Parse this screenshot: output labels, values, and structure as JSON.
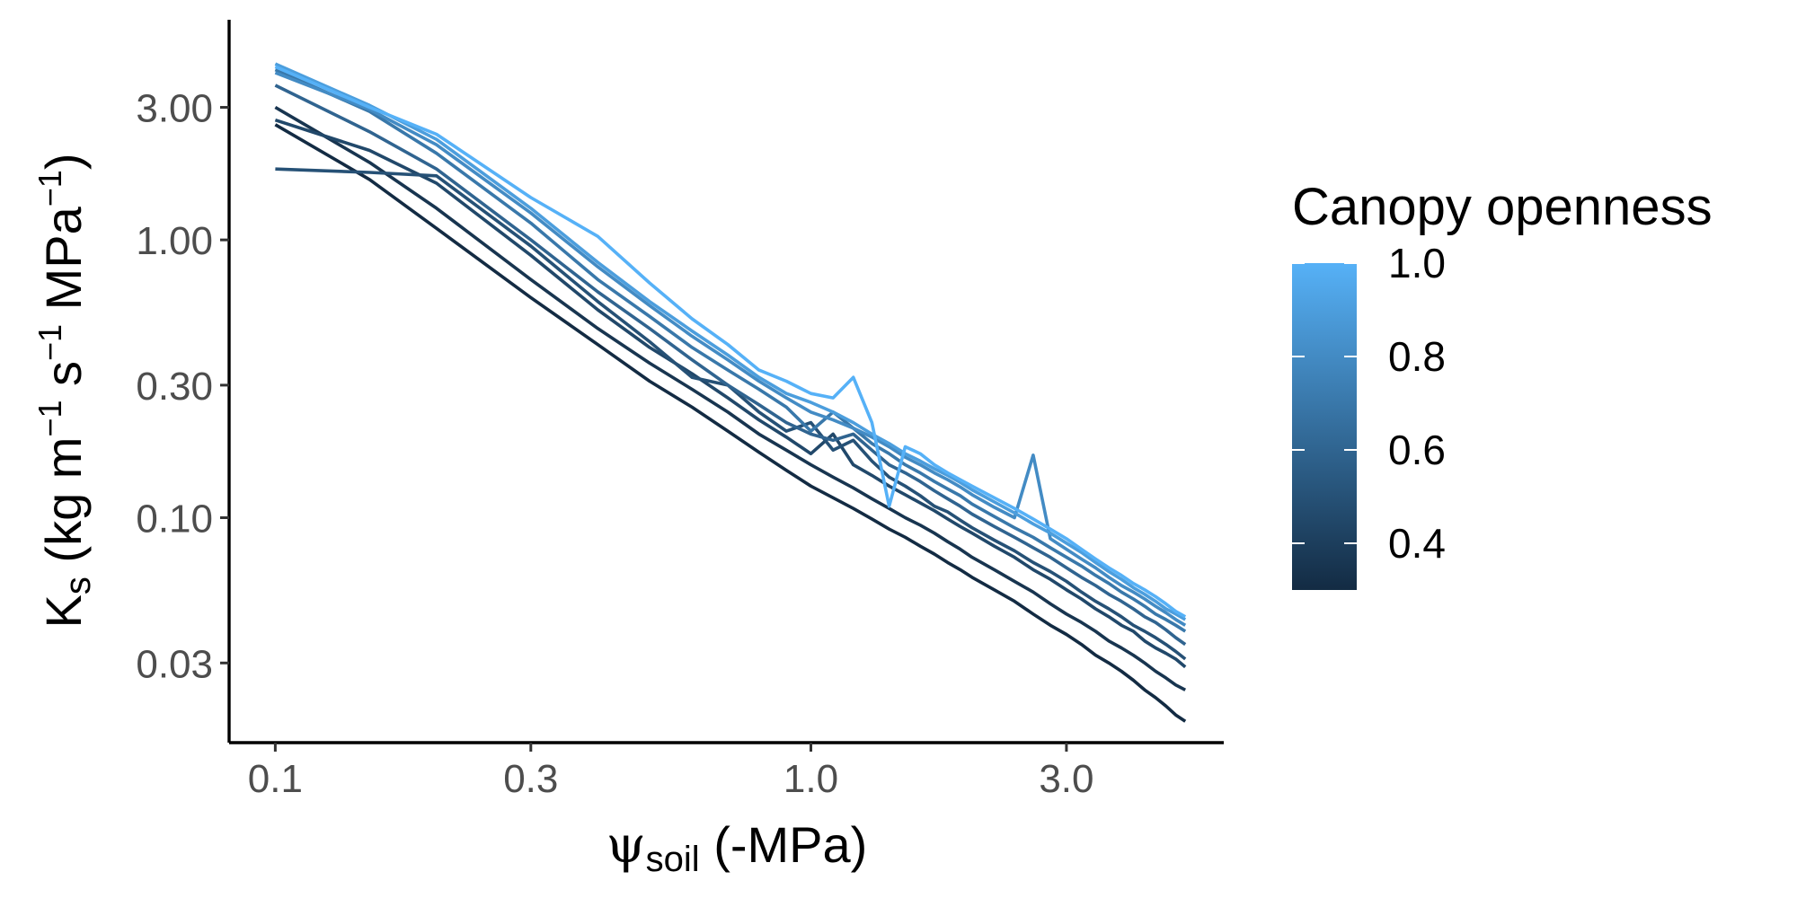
{
  "chart_data": {
    "type": "line",
    "xlabel": {
      "main": "ψ",
      "sub": "soil",
      "rest": " (-MPa)"
    },
    "ylabel": {
      "k": "K",
      "ksub": "s",
      "open": " (kg m",
      "sup1": "−1",
      "mid": " s",
      "sup2": "−1",
      "mpa": " MPa",
      "sup3": "−1",
      "close": ")"
    },
    "x_scale": "log",
    "y_scale": "log",
    "xlim": [
      0.082,
      5.9
    ],
    "ylim": [
      0.0155,
      6.2
    ],
    "x_ticks": [
      0.1,
      0.3,
      1.0,
      3.0
    ],
    "x_tick_labels": [
      "0.1",
      "0.3",
      "1.0",
      "3.0"
    ],
    "y_ticks": [
      0.03,
      0.1,
      0.3,
      1.0,
      3.0
    ],
    "y_tick_labels": [
      "0.03",
      "0.10",
      "0.30",
      "1.00",
      "3.00"
    ],
    "grid": false,
    "legend": {
      "title": "Canopy openness",
      "type": "colorbar",
      "placement": "right",
      "range": [
        0.3,
        1.0
      ],
      "ticks": [
        0.4,
        0.6,
        0.8,
        1.0
      ],
      "tick_labels": [
        "0.4",
        "0.6",
        "0.8",
        "1.0"
      ],
      "low_color": "#132B43",
      "high_color": "#56B1F7"
    },
    "x": [
      0.1,
      0.15,
      0.2,
      0.3,
      0.4,
      0.5,
      0.6,
      0.7,
      0.8,
      0.9,
      1.0,
      1.1,
      1.2,
      1.3,
      1.4,
      1.5,
      1.6,
      1.7,
      1.8,
      1.9,
      2.0,
      2.2,
      2.4,
      2.6,
      2.8,
      3.0,
      3.2,
      3.4,
      3.6,
      3.8,
      4.0,
      4.2,
      4.4,
      4.6,
      4.8,
      5.0
    ],
    "series": [
      {
        "openness": 0.3,
        "values": [
          2.6,
          1.65,
          1.1,
          0.62,
          0.42,
          0.31,
          0.25,
          0.205,
          0.172,
          0.148,
          0.13,
          0.118,
          0.108,
          0.099,
          0.091,
          0.085,
          0.079,
          0.074,
          0.069,
          0.065,
          0.061,
          0.055,
          0.05,
          0.045,
          0.041,
          0.038,
          0.035,
          0.032,
          0.03,
          0.028,
          0.026,
          0.024,
          0.0225,
          0.021,
          0.0195,
          0.0185
        ]
      },
      {
        "openness": 0.35,
        "values": [
          3.0,
          1.9,
          1.3,
          0.72,
          0.48,
          0.36,
          0.29,
          0.24,
          0.2,
          0.175,
          0.155,
          0.14,
          0.128,
          0.117,
          0.108,
          0.1,
          0.094,
          0.088,
          0.082,
          0.077,
          0.072,
          0.065,
          0.059,
          0.054,
          0.049,
          0.045,
          0.042,
          0.039,
          0.036,
          0.034,
          0.032,
          0.03,
          0.028,
          0.0265,
          0.025,
          0.024
        ]
      },
      {
        "openness": 0.45,
        "values": [
          2.7,
          2.1,
          1.6,
          0.88,
          0.56,
          0.41,
          0.33,
          0.27,
          0.225,
          0.195,
          0.17,
          0.2,
          0.155,
          0.142,
          0.13,
          0.121,
          0.113,
          0.106,
          0.099,
          0.093,
          0.088,
          0.079,
          0.072,
          0.065,
          0.06,
          0.055,
          0.051,
          0.047,
          0.044,
          0.041,
          0.039,
          0.036,
          0.034,
          0.0325,
          0.031,
          0.029
        ]
      },
      {
        "openness": 0.5,
        "values": [
          1.8,
          1.75,
          1.7,
          0.95,
          0.6,
          0.43,
          0.32,
          0.3,
          0.24,
          0.205,
          0.22,
          0.175,
          0.19,
          0.16,
          0.14,
          0.13,
          0.12,
          0.11,
          0.105,
          0.098,
          0.092,
          0.083,
          0.076,
          0.069,
          0.064,
          0.059,
          0.054,
          0.05,
          0.047,
          0.044,
          0.041,
          0.039,
          0.037,
          0.035,
          0.033,
          0.031
        ]
      },
      {
        "openness": 0.6,
        "values": [
          3.6,
          2.45,
          1.8,
          1.0,
          0.65,
          0.48,
          0.37,
          0.3,
          0.255,
          0.22,
          0.2,
          0.19,
          0.2,
          0.175,
          0.155,
          0.145,
          0.135,
          0.125,
          0.117,
          0.11,
          0.103,
          0.093,
          0.085,
          0.078,
          0.072,
          0.066,
          0.061,
          0.057,
          0.053,
          0.05,
          0.047,
          0.044,
          0.042,
          0.0395,
          0.037,
          0.035
        ]
      },
      {
        "openness": 0.7,
        "values": [
          4.1,
          2.9,
          2.05,
          1.15,
          0.72,
          0.53,
          0.41,
          0.34,
          0.29,
          0.25,
          0.205,
          0.24,
          0.21,
          0.185,
          0.17,
          0.155,
          0.145,
          0.135,
          0.127,
          0.12,
          0.112,
          0.101,
          0.092,
          0.085,
          0.078,
          0.072,
          0.067,
          0.062,
          0.058,
          0.054,
          0.051,
          0.048,
          0.045,
          0.043,
          0.041,
          0.039
        ]
      },
      {
        "openness": 0.8,
        "values": [
          4.0,
          2.95,
          2.2,
          1.25,
          0.8,
          0.58,
          0.45,
          0.37,
          0.31,
          0.27,
          0.24,
          0.225,
          0.21,
          0.195,
          0.18,
          0.165,
          0.155,
          0.145,
          0.137,
          0.129,
          0.121,
          0.109,
          0.1,
          0.168,
          0.084,
          0.077,
          0.071,
          0.066,
          0.061,
          0.057,
          0.054,
          0.051,
          0.048,
          0.0455,
          0.043,
          0.041
        ]
      },
      {
        "openness": 0.9,
        "values": [
          4.3,
          3.05,
          2.3,
          1.3,
          0.83,
          0.6,
          0.47,
          0.385,
          0.32,
          0.28,
          0.26,
          0.24,
          0.22,
          0.2,
          0.185,
          0.17,
          0.16,
          0.15,
          0.142,
          0.134,
          0.126,
          0.114,
          0.104,
          0.095,
          0.088,
          0.081,
          0.075,
          0.069,
          0.064,
          0.06,
          0.056,
          0.053,
          0.05,
          0.047,
          0.045,
          0.043
        ]
      },
      {
        "openness": 1.0,
        "values": [
          4.2,
          3.0,
          2.4,
          1.42,
          1.03,
          0.7,
          0.52,
          0.42,
          0.34,
          0.31,
          0.28,
          0.27,
          0.32,
          0.22,
          0.11,
          0.18,
          0.17,
          0.155,
          0.145,
          0.137,
          0.13,
          0.118,
          0.108,
          0.099,
          0.091,
          0.084,
          0.077,
          0.071,
          0.066,
          0.062,
          0.058,
          0.055,
          0.052,
          0.049,
          0.046,
          0.044
        ]
      }
    ]
  }
}
